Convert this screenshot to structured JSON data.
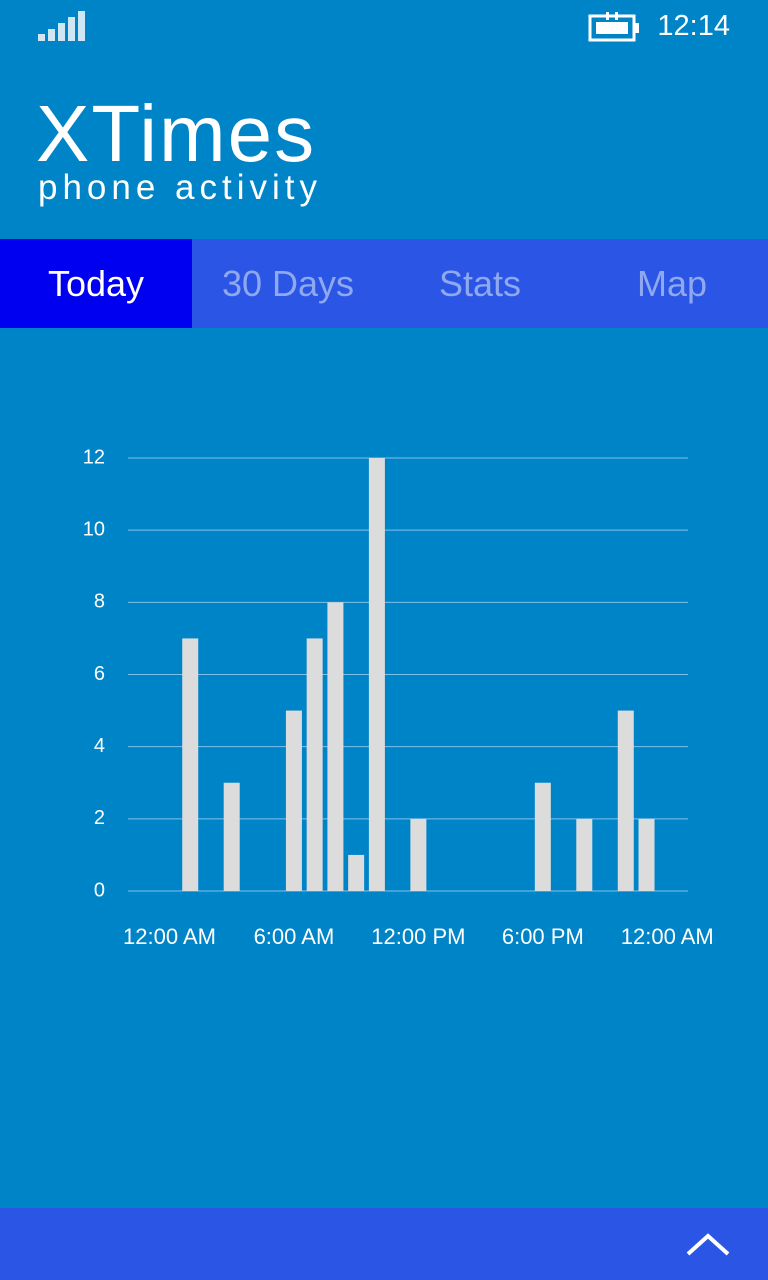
{
  "status_bar": {
    "time": "12:14"
  },
  "header": {
    "title": "XTimes",
    "subtitle": "phone activity"
  },
  "tabs": [
    "Today",
    "30 Days",
    "Stats",
    "Map"
  ],
  "chart_data": {
    "type": "bar",
    "x": [
      1,
      3,
      6,
      7,
      8,
      9,
      10,
      12,
      18,
      20,
      22,
      23
    ],
    "values": [
      7,
      3,
      5,
      7,
      8,
      1,
      12,
      2,
      3,
      2,
      5,
      2
    ],
    "color": "#dcdcdc",
    "xlim": [
      -2,
      25
    ],
    "xticks": [
      {
        "value": 0,
        "label": "12:00 AM"
      },
      {
        "value": 6,
        "label": "6:00 AM"
      },
      {
        "value": 12,
        "label": "12:00 PM"
      },
      {
        "value": 18,
        "label": "6:00 PM"
      },
      {
        "value": 24,
        "label": "12:00 AM"
      }
    ],
    "ylim": [
      0,
      12
    ],
    "yticks": [
      0,
      2,
      4,
      6,
      8,
      10,
      12
    ],
    "grid": true
  }
}
